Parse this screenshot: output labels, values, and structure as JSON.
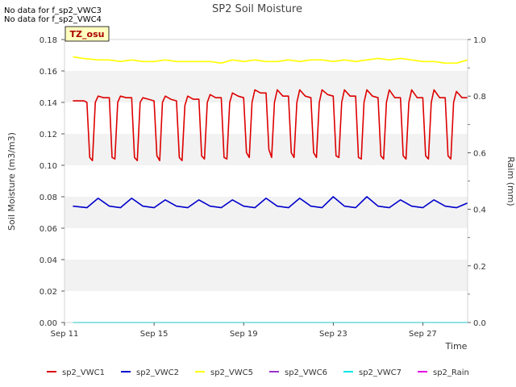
{
  "chart_data": {
    "type": "line",
    "title": "SP2 Soil Moisture",
    "xlabel": "Time",
    "ylabel": "Soil Moisture (m3/m3)",
    "y2label": "Raim (mm)",
    "notes": [
      "No data for f_sp2_VWC3",
      "No data for f_sp2_VWC4"
    ],
    "site_badge": "TZ_osu",
    "x_range": [
      "2023-09-11",
      "2023-09-29"
    ],
    "x_ticks": [
      "Sep 11",
      "Sep 15",
      "Sep 19",
      "Sep 23",
      "Sep 27"
    ],
    "ylim": [
      0.0,
      0.18
    ],
    "y_ticks": [
      "0.00",
      "0.02",
      "0.04",
      "0.06",
      "0.08",
      "0.10",
      "0.12",
      "0.14",
      "0.16",
      "0.18"
    ],
    "y2lim": [
      0.0,
      1.0
    ],
    "y2_ticks": [
      "0.0",
      "0.2",
      "0.4",
      "0.6",
      "0.8",
      "1.0"
    ],
    "grid": "horizontal bands",
    "legend": "bottom",
    "series": [
      {
        "name": "sp2_VWC1",
        "color": "#dd0000",
        "axis": "left",
        "x": [
          "2023-09-11 09:00",
          "2023-09-11 18:00",
          "2023-09-11 21:00",
          "2023-09-12 00:00",
          "2023-09-12 03:00",
          "2023-09-12 06:00",
          "2023-09-12 09:00",
          "2023-09-12 12:00",
          "2023-09-12 18:00",
          "2023-09-13 00:00",
          "2023-09-13 03:00",
          "2023-09-13 06:00",
          "2023-09-13 09:00",
          "2023-09-13 12:00",
          "2023-09-13 18:00",
          "2023-09-14 00:00",
          "2023-09-14 03:00",
          "2023-09-14 06:00",
          "2023-09-14 09:00",
          "2023-09-14 12:00",
          "2023-09-14 18:00",
          "2023-09-15 00:00",
          "2023-09-15 03:00",
          "2023-09-15 06:00",
          "2023-09-15 09:00",
          "2023-09-15 12:00",
          "2023-09-15 18:00",
          "2023-09-16 00:00",
          "2023-09-16 03:00",
          "2023-09-16 06:00",
          "2023-09-16 09:00",
          "2023-09-16 12:00",
          "2023-09-16 18:00",
          "2023-09-17 00:00",
          "2023-09-17 03:00",
          "2023-09-17 06:00",
          "2023-09-17 09:00",
          "2023-09-17 12:00",
          "2023-09-17 18:00",
          "2023-09-18 00:00",
          "2023-09-18 03:00",
          "2023-09-18 06:00",
          "2023-09-18 09:00",
          "2023-09-18 12:00",
          "2023-09-18 18:00",
          "2023-09-19 00:00",
          "2023-09-19 03:00",
          "2023-09-19 06:00",
          "2023-09-19 09:00",
          "2023-09-19 12:00",
          "2023-09-19 18:00",
          "2023-09-20 00:00",
          "2023-09-20 03:00",
          "2023-09-20 06:00",
          "2023-09-20 09:00",
          "2023-09-20 12:00",
          "2023-09-20 18:00",
          "2023-09-21 00:00",
          "2023-09-21 03:00",
          "2023-09-21 06:00",
          "2023-09-21 09:00",
          "2023-09-21 12:00",
          "2023-09-21 18:00",
          "2023-09-22 00:00",
          "2023-09-22 03:00",
          "2023-09-22 06:00",
          "2023-09-22 09:00",
          "2023-09-22 12:00",
          "2023-09-22 18:00",
          "2023-09-23 00:00",
          "2023-09-23 03:00",
          "2023-09-23 06:00",
          "2023-09-23 09:00",
          "2023-09-23 12:00",
          "2023-09-23 18:00",
          "2023-09-24 00:00",
          "2023-09-24 03:00",
          "2023-09-24 06:00",
          "2023-09-24 09:00",
          "2023-09-24 12:00",
          "2023-09-24 18:00",
          "2023-09-25 00:00",
          "2023-09-25 03:00",
          "2023-09-25 06:00",
          "2023-09-25 09:00",
          "2023-09-25 12:00",
          "2023-09-25 18:00",
          "2023-09-26 00:00",
          "2023-09-26 03:00",
          "2023-09-26 06:00",
          "2023-09-26 09:00",
          "2023-09-26 12:00",
          "2023-09-26 18:00",
          "2023-09-27 00:00",
          "2023-09-27 03:00",
          "2023-09-27 06:00",
          "2023-09-27 09:00",
          "2023-09-27 12:00",
          "2023-09-27 18:00",
          "2023-09-28 00:00",
          "2023-09-28 03:00",
          "2023-09-28 06:00",
          "2023-09-28 09:00",
          "2023-09-28 12:00",
          "2023-09-28 18:00",
          "2023-09-29 00:00"
        ],
        "values": [
          0.141,
          0.141,
          0.141,
          0.14,
          0.105,
          0.103,
          0.14,
          0.144,
          0.143,
          0.143,
          0.105,
          0.104,
          0.14,
          0.144,
          0.143,
          0.143,
          0.105,
          0.103,
          0.14,
          0.143,
          0.142,
          0.141,
          0.106,
          0.103,
          0.14,
          0.144,
          0.142,
          0.141,
          0.105,
          0.103,
          0.138,
          0.144,
          0.142,
          0.142,
          0.106,
          0.104,
          0.14,
          0.145,
          0.143,
          0.143,
          0.105,
          0.104,
          0.14,
          0.146,
          0.144,
          0.143,
          0.108,
          0.105,
          0.14,
          0.148,
          0.146,
          0.146,
          0.11,
          0.105,
          0.14,
          0.148,
          0.144,
          0.144,
          0.108,
          0.105,
          0.14,
          0.148,
          0.144,
          0.143,
          0.108,
          0.105,
          0.14,
          0.148,
          0.145,
          0.144,
          0.106,
          0.105,
          0.14,
          0.148,
          0.144,
          0.144,
          0.105,
          0.104,
          0.14,
          0.148,
          0.144,
          0.143,
          0.106,
          0.104,
          0.14,
          0.148,
          0.143,
          0.143,
          0.106,
          0.104,
          0.14,
          0.148,
          0.143,
          0.143,
          0.106,
          0.104,
          0.14,
          0.148,
          0.143,
          0.143,
          0.106,
          0.104,
          0.14,
          0.147,
          0.143,
          0.143
        ]
      },
      {
        "name": "sp2_VWC2",
        "color": "#0000cc",
        "axis": "left",
        "x": [
          "2023-09-11 09:00",
          "2023-09-12 00:00",
          "2023-09-12 12:00",
          "2023-09-13 00:00",
          "2023-09-13 12:00",
          "2023-09-14 00:00",
          "2023-09-14 12:00",
          "2023-09-15 00:00",
          "2023-09-15 12:00",
          "2023-09-16 00:00",
          "2023-09-16 12:00",
          "2023-09-17 00:00",
          "2023-09-17 12:00",
          "2023-09-18 00:00",
          "2023-09-18 12:00",
          "2023-09-19 00:00",
          "2023-09-19 12:00",
          "2023-09-20 00:00",
          "2023-09-20 12:00",
          "2023-09-21 00:00",
          "2023-09-21 12:00",
          "2023-09-22 00:00",
          "2023-09-22 12:00",
          "2023-09-23 00:00",
          "2023-09-23 12:00",
          "2023-09-24 00:00",
          "2023-09-24 12:00",
          "2023-09-25 00:00",
          "2023-09-25 12:00",
          "2023-09-26 00:00",
          "2023-09-26 12:00",
          "2023-09-27 00:00",
          "2023-09-27 12:00",
          "2023-09-28 00:00",
          "2023-09-28 12:00",
          "2023-09-29 00:00"
        ],
        "values": [
          0.074,
          0.073,
          0.079,
          0.074,
          0.073,
          0.079,
          0.074,
          0.073,
          0.078,
          0.074,
          0.073,
          0.078,
          0.074,
          0.073,
          0.078,
          0.074,
          0.073,
          0.079,
          0.074,
          0.073,
          0.079,
          0.074,
          0.073,
          0.08,
          0.074,
          0.073,
          0.08,
          0.074,
          0.073,
          0.078,
          0.074,
          0.073,
          0.078,
          0.074,
          0.073,
          0.076
        ]
      },
      {
        "name": "sp2_VWC5",
        "color": "#ffff00",
        "axis": "left",
        "x": [
          "2023-09-11 09:00",
          "2023-09-11 20:00",
          "2023-09-12 12:00",
          "2023-09-13 00:00",
          "2023-09-13 12:00",
          "2023-09-14 00:00",
          "2023-09-14 12:00",
          "2023-09-15 00:00",
          "2023-09-15 12:00",
          "2023-09-16 00:00",
          "2023-09-16 12:00",
          "2023-09-17 00:00",
          "2023-09-17 12:00",
          "2023-09-18 00:00",
          "2023-09-18 12:00",
          "2023-09-19 00:00",
          "2023-09-19 12:00",
          "2023-09-20 00:00",
          "2023-09-20 12:00",
          "2023-09-21 00:00",
          "2023-09-21 12:00",
          "2023-09-22 00:00",
          "2023-09-22 12:00",
          "2023-09-23 00:00",
          "2023-09-23 12:00",
          "2023-09-24 00:00",
          "2023-09-24 12:00",
          "2023-09-25 00:00",
          "2023-09-25 12:00",
          "2023-09-26 00:00",
          "2023-09-26 12:00",
          "2023-09-27 00:00",
          "2023-09-27 12:00",
          "2023-09-28 00:00",
          "2023-09-28 12:00",
          "2023-09-29 00:00"
        ],
        "values": [
          0.169,
          0.168,
          0.167,
          0.167,
          0.166,
          0.167,
          0.166,
          0.166,
          0.167,
          0.166,
          0.166,
          0.166,
          0.166,
          0.165,
          0.167,
          0.166,
          0.167,
          0.166,
          0.166,
          0.167,
          0.166,
          0.167,
          0.167,
          0.166,
          0.167,
          0.166,
          0.167,
          0.168,
          0.167,
          0.168,
          0.167,
          0.166,
          0.166,
          0.165,
          0.165,
          0.167
        ]
      },
      {
        "name": "sp2_VWC6",
        "color": "#9933cc",
        "axis": "left",
        "x": [],
        "values": []
      },
      {
        "name": "sp2_VWC7",
        "color": "#00e5e5",
        "axis": "left",
        "x": [
          "2023-09-11 09:00",
          "2023-09-29 00:00"
        ],
        "values": [
          0.0,
          0.0
        ]
      },
      {
        "name": "sp2_Rain",
        "color": "#e500e5",
        "axis": "right",
        "x": [],
        "values": []
      }
    ]
  }
}
